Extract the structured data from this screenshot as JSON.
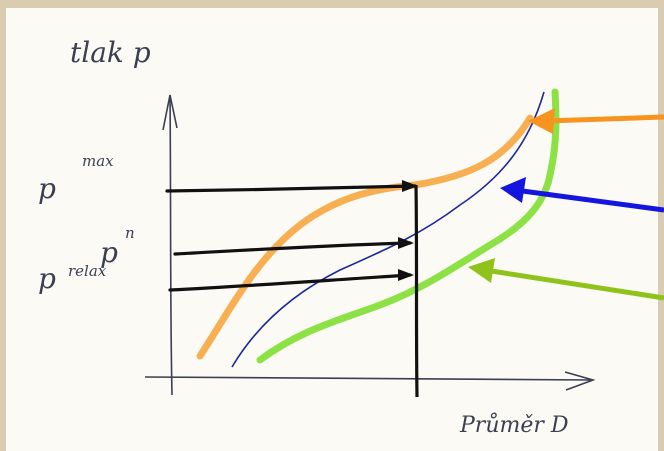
{
  "labels": {
    "y_axis": "tlak p",
    "x_axis": "Průměr D",
    "p_max_base": "p",
    "p_max_sup": "max",
    "p_n_base": "p",
    "p_n_sup": "n",
    "p_relax_base": "p",
    "p_relax_sup": "relax"
  },
  "colors": {
    "paper": "#fbfaf4",
    "border": "#d9ccb0",
    "pen": "#3a3f52",
    "orange": "#f7a640",
    "blue": "#1a2a9a",
    "green": "#86e03a",
    "arrow_orange": "#f7931e",
    "arrow_blue": "#1515e0",
    "arrow_green": "#8fc21a",
    "black": "#111111"
  }
}
